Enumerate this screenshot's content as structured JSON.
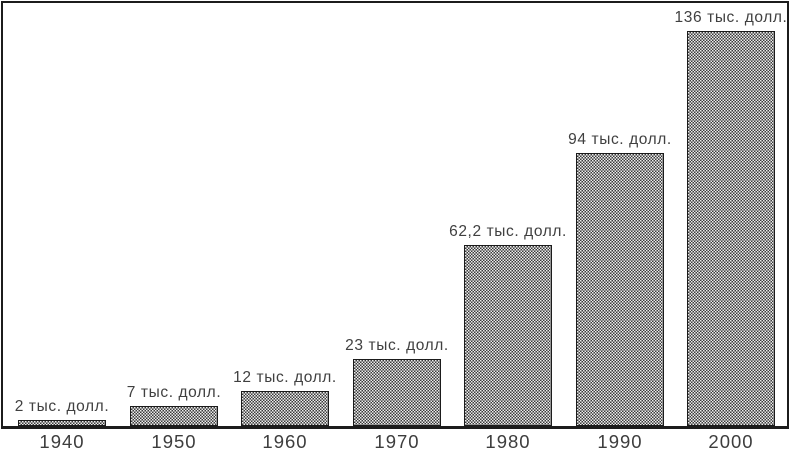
{
  "chart_data": {
    "type": "bar",
    "categories": [
      "1940",
      "1950",
      "1960",
      "1970",
      "1980",
      "1990",
      "2000"
    ],
    "values": [
      2,
      7,
      12,
      23,
      62.2,
      94,
      136
    ],
    "bar_labels": [
      "2 тыс. долл.",
      "7 тыс. долл.",
      "12 тыс. долл.",
      "23 тыс. долл.",
      "62,2 тыс. долл.",
      "94 тыс. долл.",
      "136 тыс. долл."
    ],
    "unit_suffix": "тыс. долл.",
    "title": "",
    "xlabel": "",
    "ylabel": "",
    "ylim": [
      0,
      145
    ],
    "grid": false,
    "legend": false,
    "bar_fill": "checkered-pattern",
    "orientation": "vertical"
  },
  "style": {
    "frame_border_color": "#1c1c1c",
    "bar_border_color": "#1b1b1b",
    "pattern_dark_color": "#3a3a3a",
    "pattern_light_color": "#ededed",
    "text_color": "#404040",
    "background_color": "#ffffff"
  }
}
